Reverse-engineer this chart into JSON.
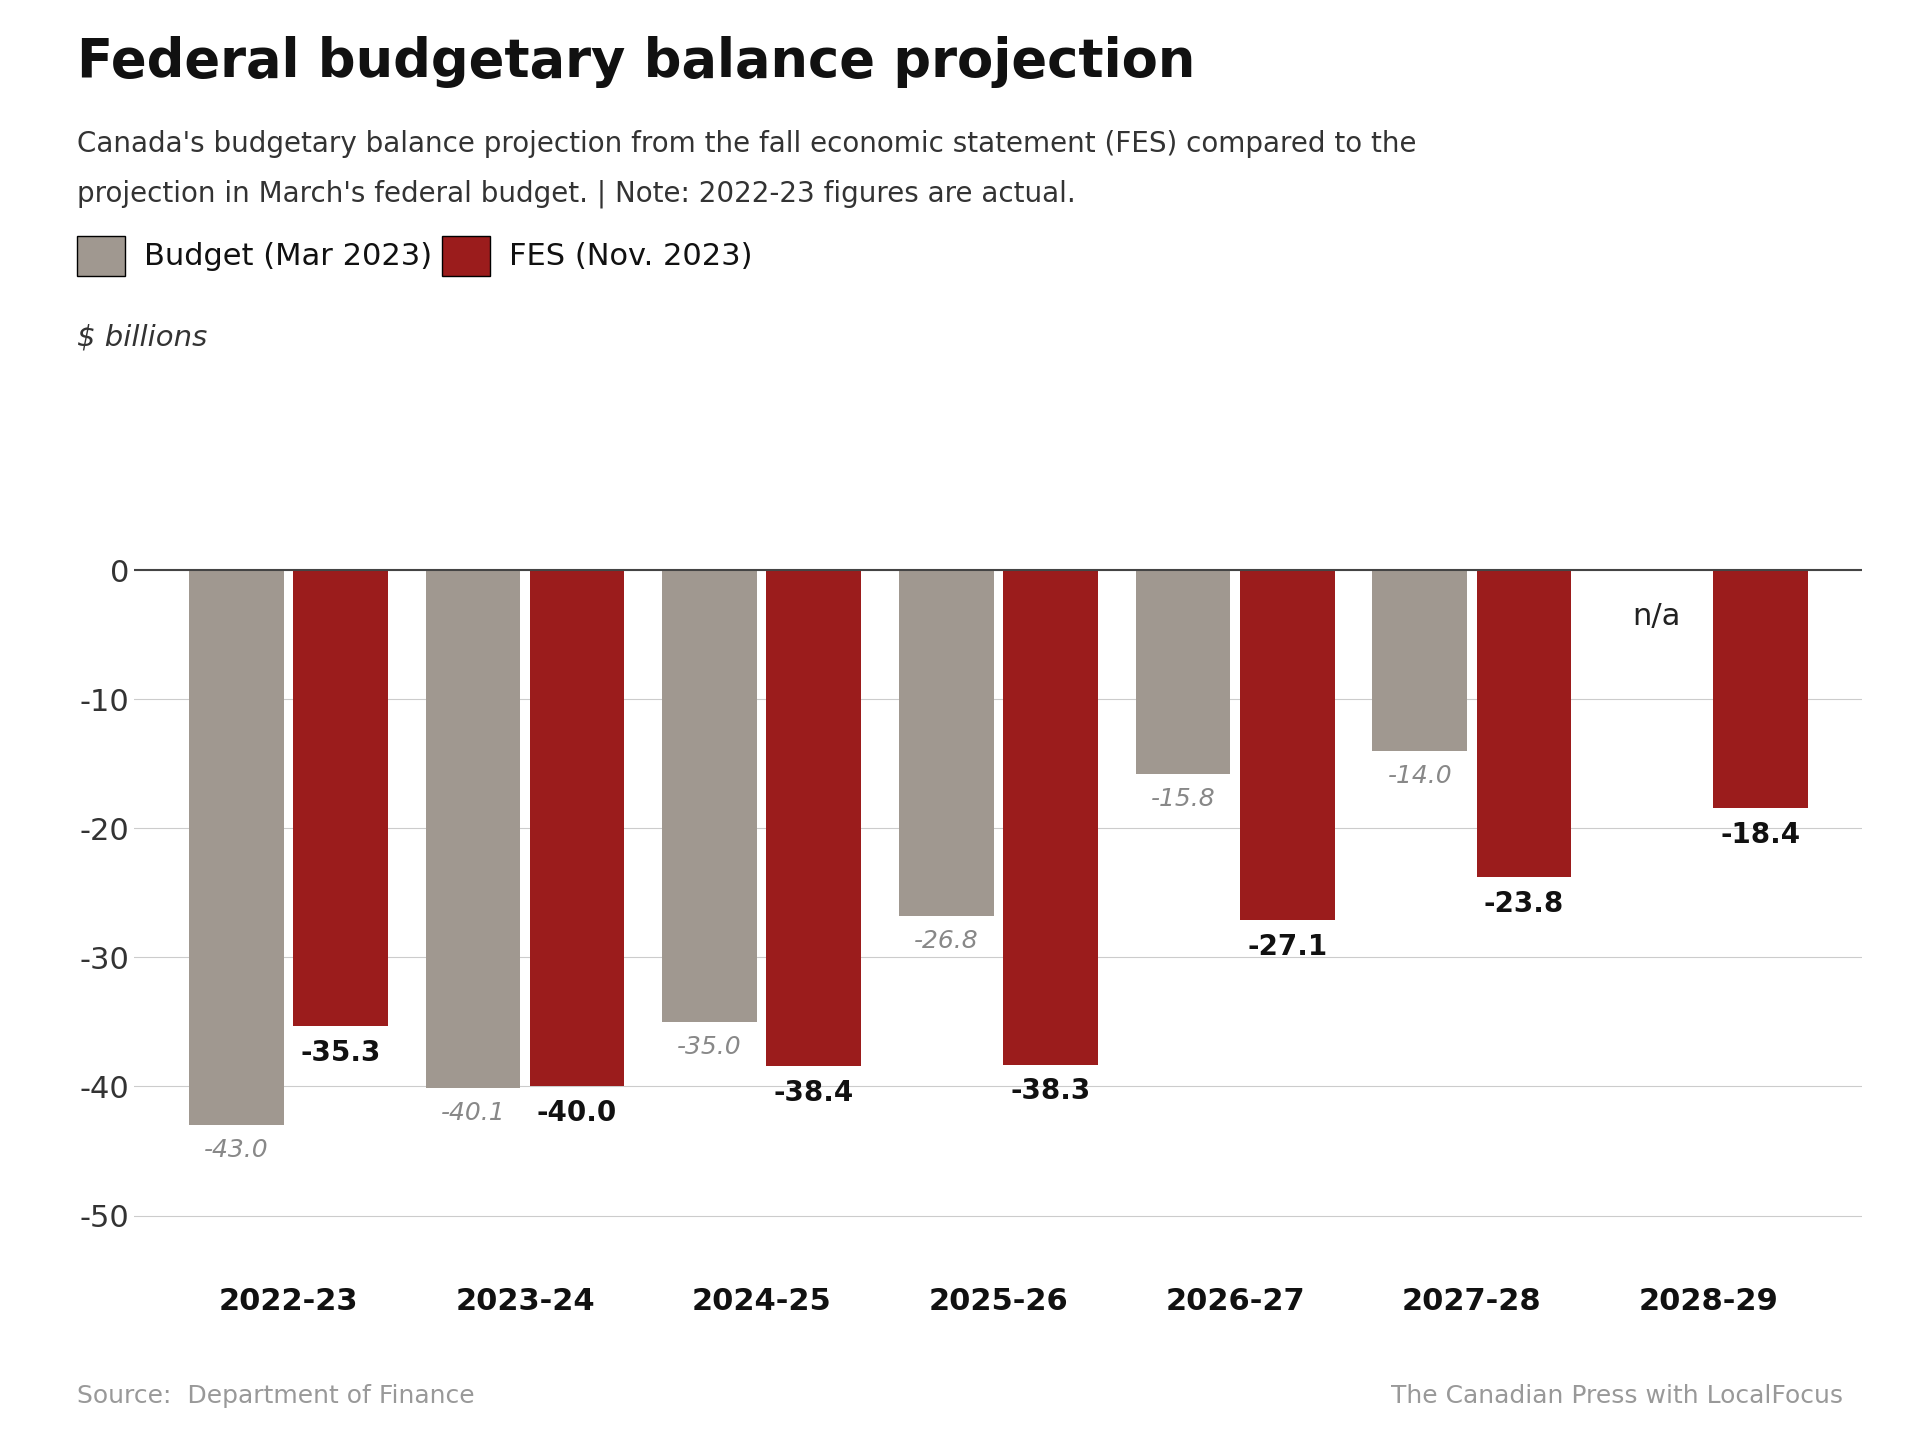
{
  "title": "Federal budgetary balance projection",
  "subtitle_line1": "Canada's budgetary balance projection from the fall economic statement (FES) compared to the",
  "subtitle_line2": "projection in March's federal budget. | Note: 2022-23 figures are actual.",
  "ylabel": "$ billions",
  "source_left": "Source:  Department of Finance",
  "source_right": "The Canadian Press with LocalFocus",
  "legend_budget": "Budget (Mar 2023)",
  "legend_fes": "FES (Nov. 2023)",
  "categories": [
    "2022-23",
    "2023-24",
    "2024-25",
    "2025-26",
    "2026-27",
    "2027-28",
    "2028-29"
  ],
  "budget_values": [
    -43.0,
    -40.1,
    -35.0,
    -26.8,
    -15.8,
    -14.0,
    null
  ],
  "fes_values": [
    -35.3,
    -40.0,
    -38.4,
    -38.3,
    -27.1,
    -23.8,
    -18.4
  ],
  "budget_color": "#a09890",
  "fes_color": "#9b1c1c",
  "bar_width": 0.4,
  "bar_gap": 0.04,
  "ylim_min": -54,
  "ylim_max": 4,
  "yticks": [
    0,
    -10,
    -20,
    -30,
    -40,
    -50
  ],
  "background_color": "#ffffff",
  "title_fontsize": 38,
  "subtitle_fontsize": 20,
  "label_fontsize_budget": 18,
  "label_fontsize_fes": 20,
  "legend_fontsize": 22,
  "tick_fontsize": 22,
  "source_fontsize": 18,
  "nax_label": "n/a",
  "fes_labels": [
    "-35.3",
    "-40.0",
    "-38.4",
    "-38.3",
    "-27.1",
    "-23.8",
    "-18.4"
  ],
  "budget_labels": [
    "-43.0",
    "-40.1",
    "-35.0",
    "-26.8",
    "-15.8",
    "-14.0"
  ]
}
